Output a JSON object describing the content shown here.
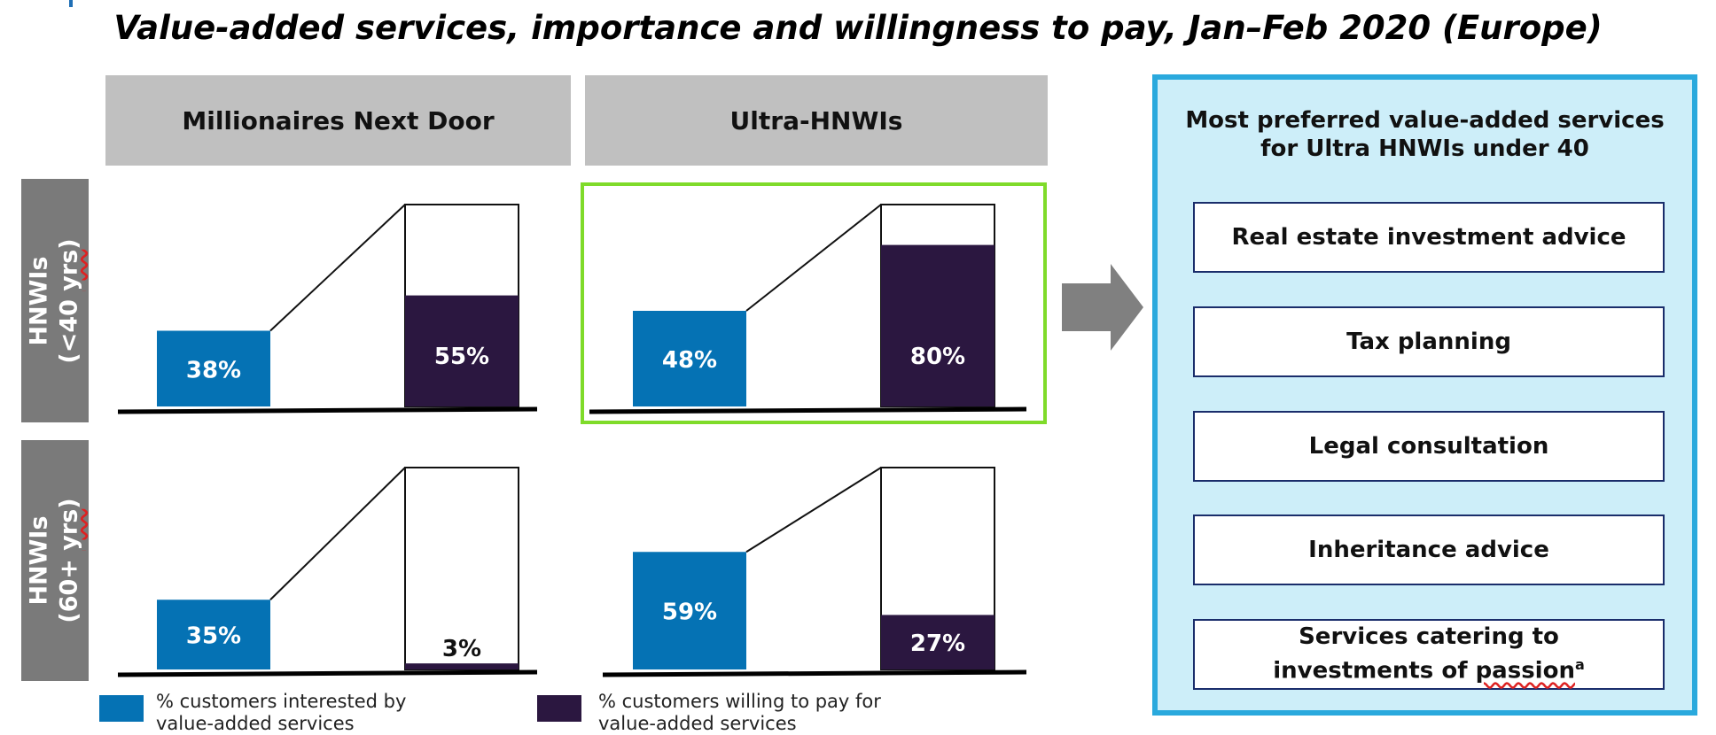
{
  "title": "Value-added services, importance and willingness to pay, Jan–Feb 2020 (Europe)",
  "colors": {
    "interested": "#0572b4",
    "willing": "#2b1740",
    "highlight": "#7fdb2a",
    "panel_border": "#2aa9dd",
    "panel_bg": "#cdeef9",
    "header_bg": "#c0c0c0",
    "row_header_bg": "#7a7a7a",
    "arrow": "#808080"
  },
  "columns": [
    "Millionaires Next Door",
    "Ultra-HNWIs"
  ],
  "rows": [
    {
      "line1": "HNWIs",
      "line2_pre": "(<40 ",
      "line2_wavy": "yrs",
      "line2_post": ")"
    },
    {
      "line1": "HNWIs",
      "line2_pre": "(60+ ",
      "line2_wavy": "yrs",
      "line2_post": ")"
    }
  ],
  "chart_data": [
    {
      "type": "bar",
      "segment": "Millionaires Next Door",
      "group": "HNWIs (<40 yrs)",
      "categories": [
        "interested",
        "willing to pay"
      ],
      "values": [
        38,
        55
      ],
      "labels": [
        "38%",
        "55%"
      ],
      "ylim": [
        0,
        100
      ],
      "highlighted": false
    },
    {
      "type": "bar",
      "segment": "Ultra-HNWIs",
      "group": "HNWIs (<40 yrs)",
      "categories": [
        "interested",
        "willing to pay"
      ],
      "values": [
        48,
        80
      ],
      "labels": [
        "48%",
        "80%"
      ],
      "ylim": [
        0,
        100
      ],
      "highlighted": true
    },
    {
      "type": "bar",
      "segment": "Millionaires Next Door",
      "group": "HNWIs (60+ yrs)",
      "categories": [
        "interested",
        "willing to pay"
      ],
      "values": [
        35,
        3
      ],
      "labels": [
        "35%",
        "3%"
      ],
      "ylim": [
        0,
        100
      ],
      "highlighted": false
    },
    {
      "type": "bar",
      "segment": "Ultra-HNWIs",
      "group": "HNWIs (60+ yrs)",
      "categories": [
        "interested",
        "willing to pay"
      ],
      "values": [
        59,
        27
      ],
      "labels": [
        "59%",
        "27%"
      ],
      "ylim": [
        0,
        100
      ],
      "highlighted": false
    }
  ],
  "legend": {
    "interested": {
      "line1": "% customers interested by",
      "line2": "value-added services"
    },
    "willing": {
      "line1": "% customers willing to pay for",
      "line2": "value-added services"
    }
  },
  "panel": {
    "title_line1": "Most preferred value-added services",
    "title_line2": "for Ultra HNWIs under 40",
    "services": [
      "Real estate investment advice",
      "Tax planning",
      "Legal consultation",
      "Inheritance advice"
    ],
    "last_service": {
      "line1": "Services catering to",
      "line2_pre": "investments of ",
      "line2_wavy": "passion",
      "superscript": "a"
    }
  }
}
